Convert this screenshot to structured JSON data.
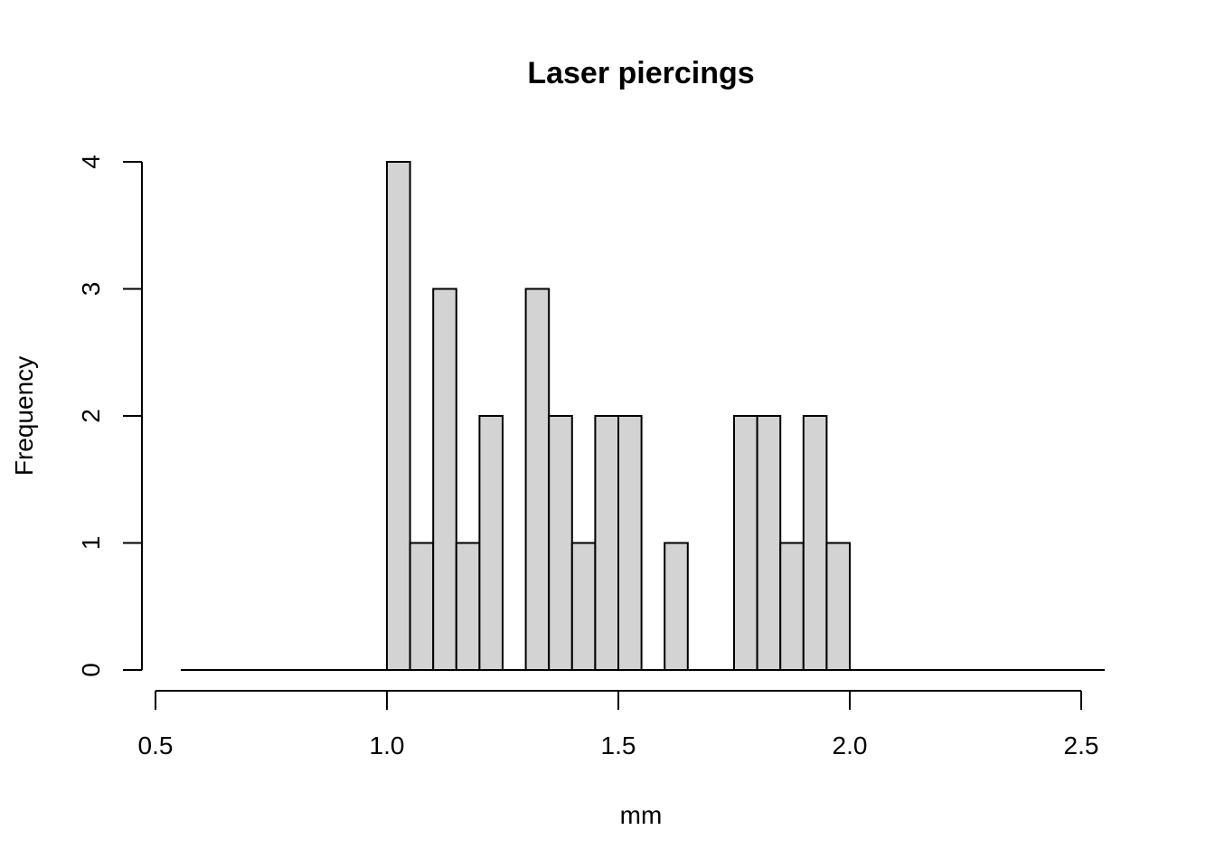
{
  "chart_data": {
    "type": "bar",
    "title": "Laser piercings",
    "xlabel": "mm",
    "ylabel": "Frequency",
    "bin_width": 0.05,
    "bins": [
      {
        "x0": 1.0,
        "x1": 1.05,
        "count": 4
      },
      {
        "x0": 1.05,
        "x1": 1.1,
        "count": 1
      },
      {
        "x0": 1.1,
        "x1": 1.15,
        "count": 3
      },
      {
        "x0": 1.15,
        "x1": 1.2,
        "count": 1
      },
      {
        "x0": 1.2,
        "x1": 1.25,
        "count": 2
      },
      {
        "x0": 1.25,
        "x1": 1.3,
        "count": 0
      },
      {
        "x0": 1.3,
        "x1": 1.35,
        "count": 3
      },
      {
        "x0": 1.35,
        "x1": 1.4,
        "count": 2
      },
      {
        "x0": 1.4,
        "x1": 1.45,
        "count": 1
      },
      {
        "x0": 1.45,
        "x1": 1.5,
        "count": 2
      },
      {
        "x0": 1.5,
        "x1": 1.55,
        "count": 2
      },
      {
        "x0": 1.55,
        "x1": 1.6,
        "count": 0
      },
      {
        "x0": 1.6,
        "x1": 1.65,
        "count": 1
      },
      {
        "x0": 1.65,
        "x1": 1.7,
        "count": 0
      },
      {
        "x0": 1.7,
        "x1": 1.75,
        "count": 0
      },
      {
        "x0": 1.75,
        "x1": 1.8,
        "count": 2
      },
      {
        "x0": 1.8,
        "x1": 1.85,
        "count": 2
      },
      {
        "x0": 1.85,
        "x1": 1.9,
        "count": 1
      },
      {
        "x0": 1.9,
        "x1": 1.95,
        "count": 2
      },
      {
        "x0": 1.95,
        "x1": 2.0,
        "count": 1
      }
    ],
    "xlim": [
      0.55,
      2.55
    ],
    "ylim": [
      0,
      4
    ],
    "x_ticks": [
      0.5,
      1.0,
      1.5,
      2.0,
      2.5
    ],
    "x_tick_labels": [
      "0.5",
      "1.0",
      "1.5",
      "2.0",
      "2.5"
    ],
    "y_ticks": [
      0,
      1,
      2,
      3,
      4
    ],
    "y_tick_labels": [
      "0",
      "1",
      "2",
      "3",
      "4"
    ],
    "grid": false,
    "bar_fill": "#d3d3d3",
    "bar_stroke": "#000000"
  }
}
